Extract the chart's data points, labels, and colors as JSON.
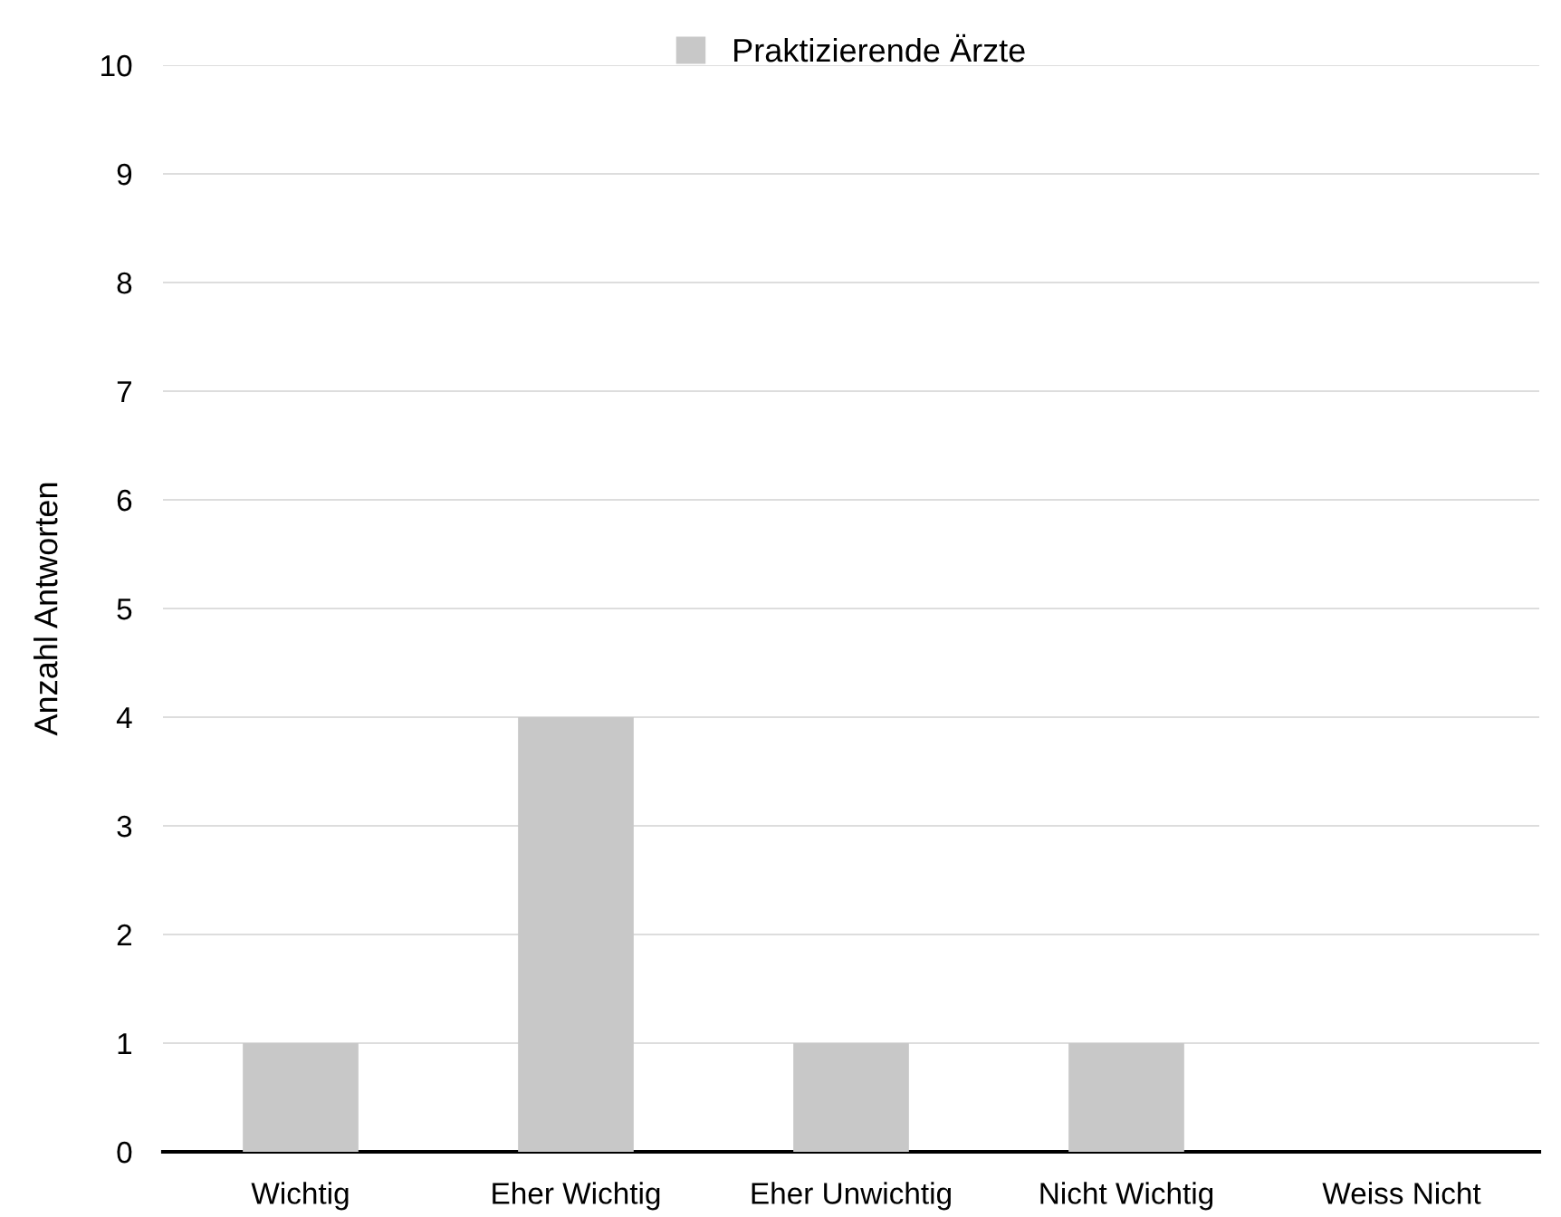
{
  "chart_data": {
    "type": "bar",
    "ylabel": "Anzahl Antworten",
    "categories": [
      "Wichtig",
      "Eher Wichtig",
      "Eher Unwichtig",
      "Nicht Wichtig",
      "Weiss Nicht"
    ],
    "series": [
      {
        "name": "Praktizierende Ärzte",
        "color": "#c8c8c8",
        "values": [
          1,
          4,
          1,
          1,
          0
        ]
      }
    ],
    "ylim": [
      0,
      10
    ],
    "yticks": [
      0,
      1,
      2,
      3,
      4,
      5,
      6,
      7,
      8,
      9,
      10
    ],
    "grid": "y",
    "legend": "top"
  }
}
